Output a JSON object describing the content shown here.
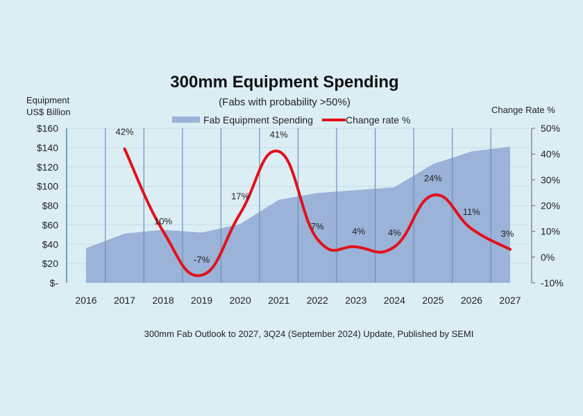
{
  "chart_data": {
    "type": "area+line",
    "title": "300mm Equipment Spending",
    "subtitle": "(Fabs with probability >50%)",
    "source": "300mm Fab Outlook to 2027, 3Q24 (September 2024) Update, Published by SEMI",
    "categories": [
      "2016",
      "2017",
      "2018",
      "2019",
      "2020",
      "2021",
      "2022",
      "2023",
      "2024",
      "2025",
      "2026",
      "2027"
    ],
    "y_left": {
      "label_line1": "Equipment",
      "label_line2": "US$ Billion",
      "ylim": [
        0,
        160
      ],
      "ticks": [
        0,
        20,
        40,
        60,
        80,
        100,
        120,
        140,
        160
      ],
      "tick_labels": [
        "$-",
        "$20",
        "$40",
        "$60",
        "$80",
        "$100",
        "$120",
        "$140",
        "$160"
      ]
    },
    "y_right": {
      "label": "Change Rate %",
      "ylim": [
        -10,
        50
      ],
      "ticks": [
        -10,
        0,
        10,
        20,
        30,
        40,
        50
      ],
      "tick_labels": [
        "-10%",
        "0%",
        "10%",
        "20%",
        "30%",
        "40%",
        "50%"
      ]
    },
    "series": [
      {
        "name": "Fab Equipment Spending",
        "type": "area",
        "axis": "left",
        "color": "#9bb3d8",
        "values": [
          36,
          51,
          55,
          52,
          61,
          86,
          93,
          96,
          99,
          123,
          136,
          141
        ]
      },
      {
        "name": "Change rate %",
        "type": "line",
        "axis": "right",
        "color": "#e3101a",
        "values": [
          null,
          42,
          10,
          -7,
          17,
          41,
          7,
          4,
          4,
          24,
          11,
          3
        ],
        "labels": [
          "",
          "42%",
          "10%",
          "-7%",
          "17%",
          "41%",
          "7%",
          "4%",
          "4%",
          "24%",
          "11%",
          "3%"
        ]
      }
    ],
    "legend": {
      "position": "top-center",
      "entries": [
        "Fab Equipment Spending",
        "Change rate %"
      ]
    },
    "grid": true,
    "vertical_gridlines": true
  }
}
